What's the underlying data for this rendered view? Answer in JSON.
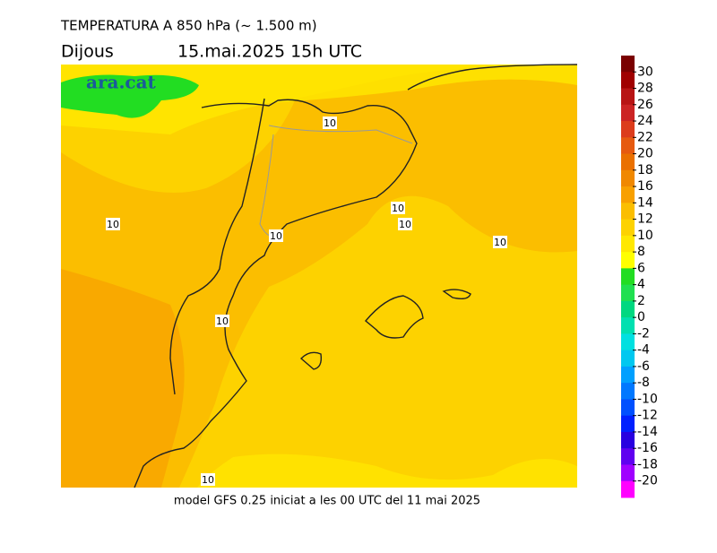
{
  "header": {
    "title": "TEMPERATURA A 850 hPa (~ 1.500 m)",
    "day": "Dijous",
    "datetime": "15.mai.2025 15h UTC"
  },
  "logo": "ara.cat",
  "contour_labels": [
    10,
    10,
    10,
    10,
    10,
    10,
    10,
    10
  ],
  "footer": "model GFS 0.25 iniciat a les 00 UTC del 11 mai 2025",
  "colorbar": {
    "ticks": [
      30,
      28,
      26,
      24,
      22,
      20,
      18,
      16,
      14,
      12,
      10,
      8,
      6,
      4,
      2,
      0,
      -2,
      -4,
      -6,
      -8,
      -10,
      -12,
      -14,
      -16,
      -18,
      -20
    ],
    "colors": [
      "#7a0000",
      "#a00000",
      "#b81414",
      "#cc2424",
      "#dc3c1c",
      "#e65a10",
      "#ea7000",
      "#f08800",
      "#f8a000",
      "#fbbe00",
      "#fdd200",
      "#ffe800",
      "#ffff00",
      "#22dd22",
      "#20e050",
      "#00d880",
      "#00e0b0",
      "#00e0e0",
      "#00c8f0",
      "#00a0ff",
      "#0078ff",
      "#0050ff",
      "#0020ff",
      "#2800e0",
      "#6000f0",
      "#a000ff",
      "#ff00ff"
    ]
  }
}
